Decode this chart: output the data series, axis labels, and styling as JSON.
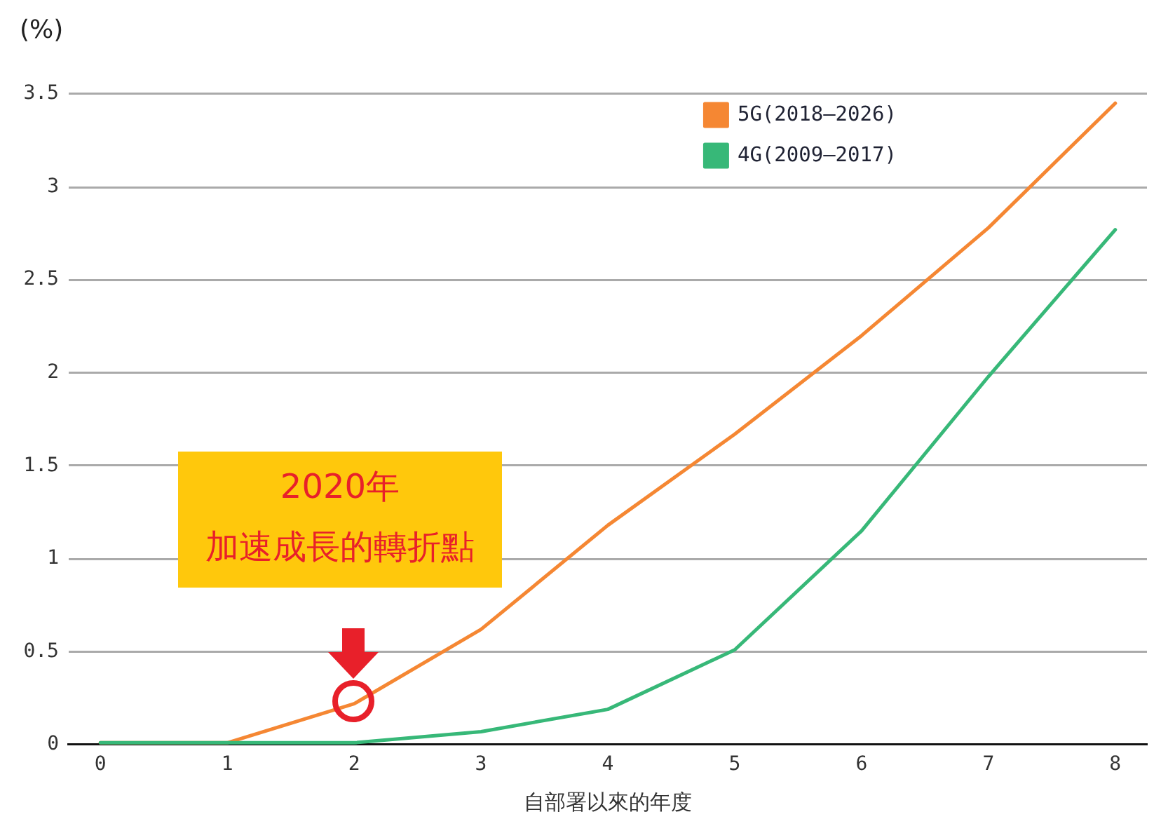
{
  "chart_data": {
    "type": "line",
    "ylabel": "(%)",
    "xlabel": "自部署以來的年度",
    "x": [
      0,
      1,
      2,
      3,
      4,
      5,
      6,
      7,
      8
    ],
    "series": [
      {
        "name": "5G(2018–2026)",
        "color": "#f58733",
        "values": [
          0.01,
          0.01,
          0.22,
          0.62,
          1.18,
          1.67,
          2.2,
          2.78,
          3.45
        ]
      },
      {
        "name": "4G(2009–2017)",
        "color": "#37b878",
        "values": [
          0.01,
          0.01,
          0.01,
          0.07,
          0.19,
          0.51,
          1.15,
          1.98,
          2.77
        ]
      }
    ],
    "xlim": [
      -0.25,
      8.25
    ],
    "xticks": [
      0,
      1,
      2,
      3,
      4,
      5,
      6,
      7,
      8
    ],
    "ylim": [
      0,
      3.5
    ],
    "yticks": [
      0,
      0.5,
      1,
      1.5,
      2,
      2.5,
      3,
      3.5
    ],
    "grid": "y",
    "legend": "top right",
    "marker": "none",
    "line_style": "solid",
    "annotations": [
      "2020年",
      "加速成長的轉折點"
    ]
  }
}
